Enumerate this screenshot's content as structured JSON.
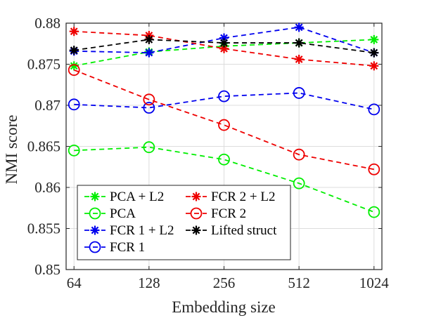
{
  "chart_data": {
    "type": "line",
    "xlabel": "Embedding size",
    "ylabel": "NMI score",
    "x": [
      64,
      128,
      256,
      512,
      1024
    ],
    "categories": [
      "64",
      "128",
      "256",
      "512",
      "1024"
    ],
    "ylim": [
      0.85,
      0.88
    ],
    "yticks": [
      0.85,
      0.855,
      0.86,
      0.865,
      0.87,
      0.875,
      0.88
    ],
    "ytick_labels": [
      "0.85",
      "0.855",
      "0.86",
      "0.865",
      "0.87",
      "0.875",
      "0.88"
    ],
    "grid": true,
    "legend_position": "bottom-left",
    "series": [
      {
        "name": "PCA + L2",
        "color": "#00ee00",
        "marker": "asterisk",
        "values": [
          0.8748,
          0.8765,
          0.8772,
          0.8776,
          0.878
        ]
      },
      {
        "name": "PCA",
        "color": "#00ee00",
        "marker": "circle",
        "values": [
          0.8645,
          0.8649,
          0.8634,
          0.8605,
          0.857
        ]
      },
      {
        "name": "FCR 1 + L2",
        "color": "#0000ee",
        "marker": "asterisk",
        "values": [
          0.8766,
          0.8764,
          0.8782,
          0.8795,
          0.8764
        ]
      },
      {
        "name": "FCR 1",
        "color": "#0000ee",
        "marker": "circle",
        "values": [
          0.8701,
          0.8697,
          0.8711,
          0.8715,
          0.8695
        ]
      },
      {
        "name": "FCR 2 + L2",
        "color": "#ee0000",
        "marker": "asterisk",
        "values": [
          0.879,
          0.8785,
          0.8769,
          0.8756,
          0.8748
        ]
      },
      {
        "name": "FCR 2",
        "color": "#ee0000",
        "marker": "circle",
        "values": [
          0.8743,
          0.8707,
          0.8676,
          0.864,
          0.8622
        ]
      },
      {
        "name": "Lifted struct",
        "color": "#000000",
        "marker": "asterisk",
        "values": [
          0.8767,
          0.878,
          0.8776,
          0.8776,
          0.8764
        ]
      }
    ]
  }
}
